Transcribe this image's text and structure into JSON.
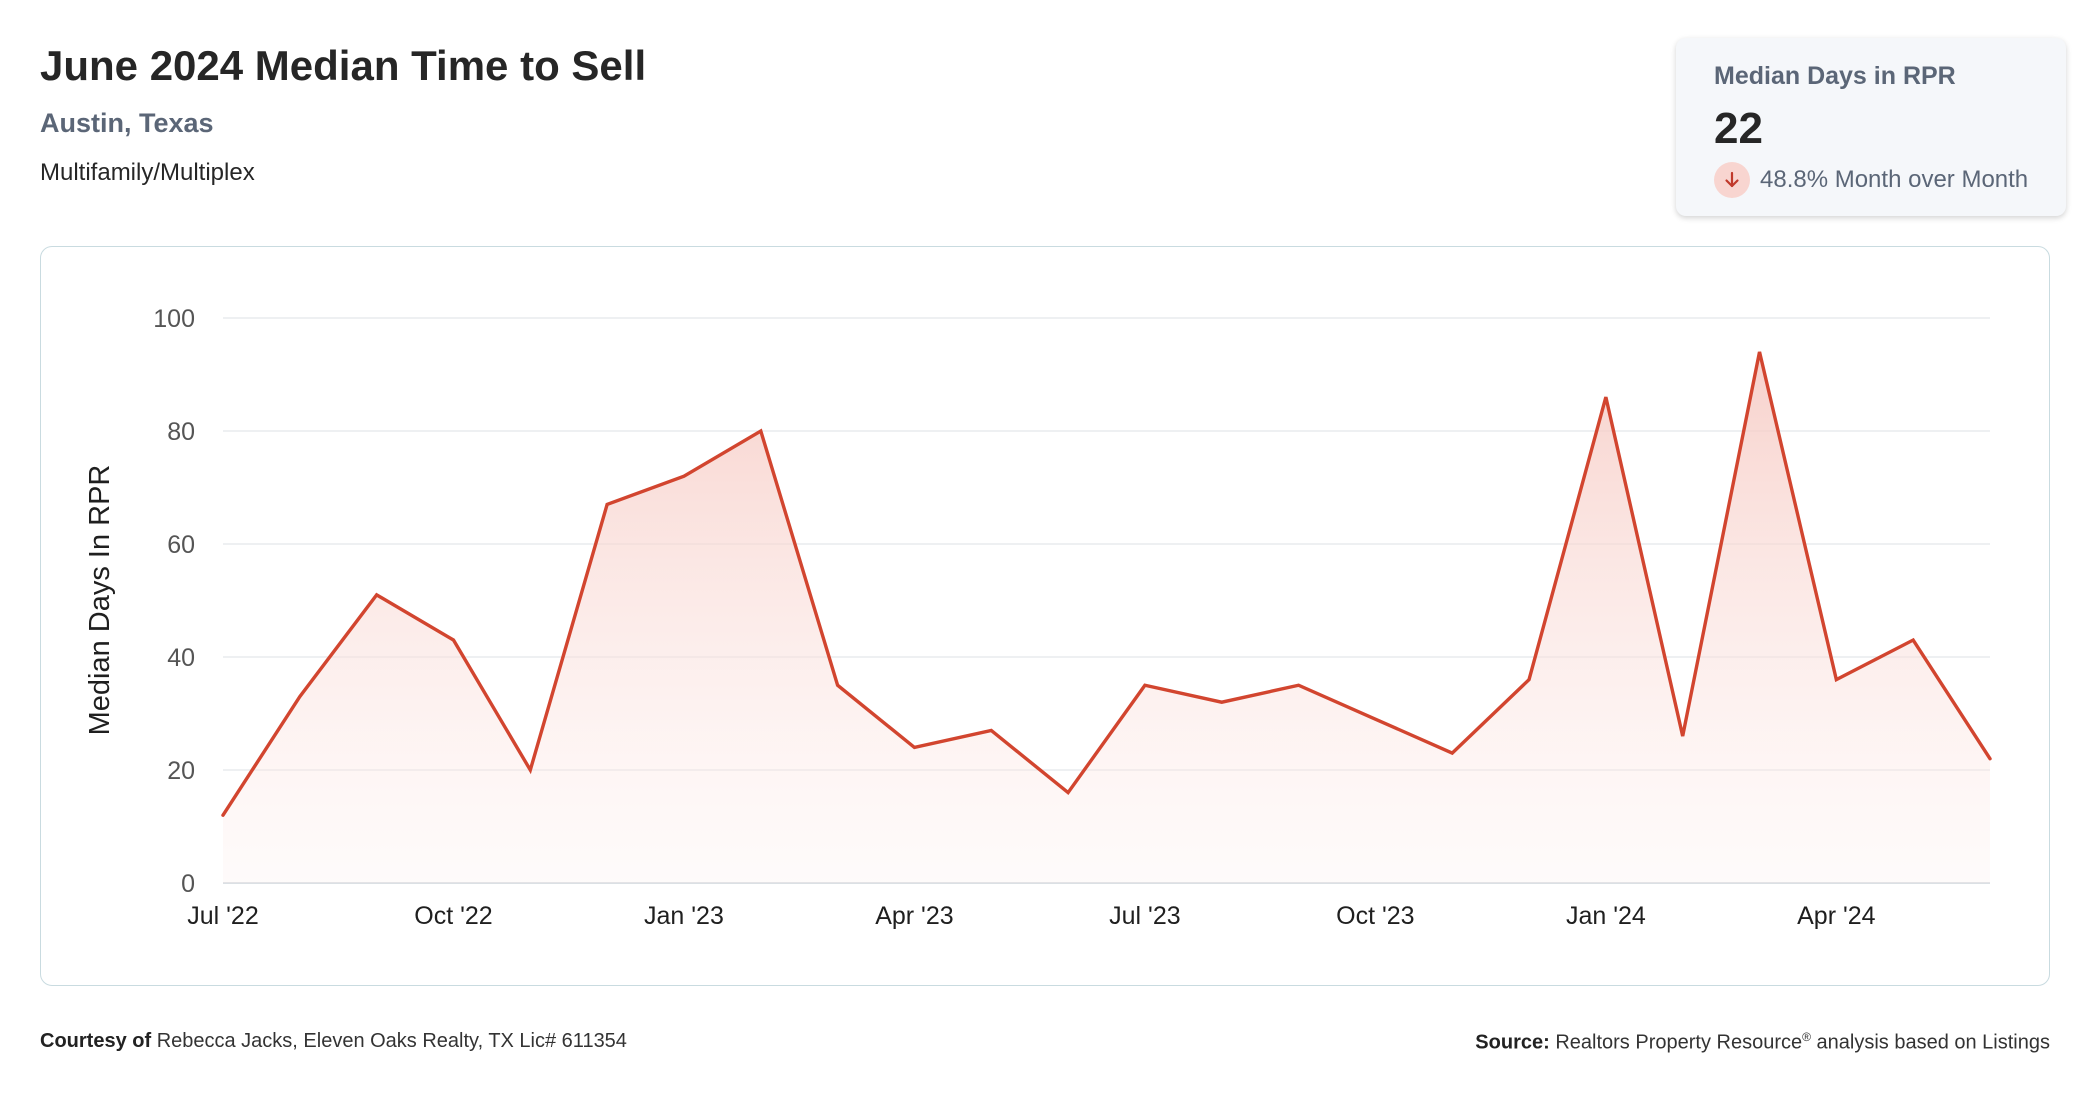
{
  "header": {
    "title": "June 2024 Median Time to Sell",
    "location": "Austin, Texas",
    "property_type": "Multifamily/Multiplex"
  },
  "kpi": {
    "label": "Median Days in RPR",
    "value": "22",
    "change": "48.8% Month over Month",
    "direction_icon": "arrow-down-icon"
  },
  "footer": {
    "courtesy_label": "Courtesy of",
    "courtesy_text": "Rebecca Jacks, Eleven Oaks Realty, TX Lic# 611354",
    "source_label": "Source:",
    "source_text_1": "Realtors Property Resource",
    "source_reg": "®",
    "source_text_2": " analysis based on Listings"
  },
  "colors": {
    "line": "#d2452f",
    "fill": "#f6c9c2",
    "grid": "#e3e6ea",
    "axis": "#cfd5db",
    "accent_text": "#5b6677",
    "arrow_bg": "#f8d5d0"
  },
  "chart_data": {
    "type": "area",
    "ylabel": "Median Days In RPR",
    "ylim": [
      0,
      100
    ],
    "yticks": [
      0,
      20,
      40,
      60,
      80,
      100
    ],
    "x_tick_labels": [
      "Jul '22",
      "Oct '22",
      "Jan '23",
      "Apr '23",
      "Jul '23",
      "Oct '23",
      "Jan '24",
      "Apr '24"
    ],
    "x_tick_months": [
      "2022-07",
      "2022-10",
      "2023-01",
      "2023-04",
      "2023-07",
      "2023-10",
      "2024-01",
      "2024-04"
    ],
    "x": [
      "2022-07",
      "2022-08",
      "2022-09",
      "2022-10",
      "2022-11",
      "2022-12",
      "2023-01",
      "2023-02",
      "2023-03",
      "2023-04",
      "2023-05",
      "2023-06",
      "2023-07",
      "2023-08",
      "2023-09",
      "2023-10",
      "2023-11",
      "2023-12",
      "2024-01",
      "2024-02",
      "2024-03",
      "2024-04",
      "2024-05",
      "2024-06"
    ],
    "series": [
      {
        "values": [
          12,
          33,
          51,
          43,
          20,
          67,
          72,
          80,
          35,
          24,
          27,
          16,
          35,
          32,
          35,
          29,
          23,
          36,
          86,
          26,
          94,
          36,
          43,
          22
        ]
      }
    ],
    "grid": true,
    "legend": "none"
  }
}
